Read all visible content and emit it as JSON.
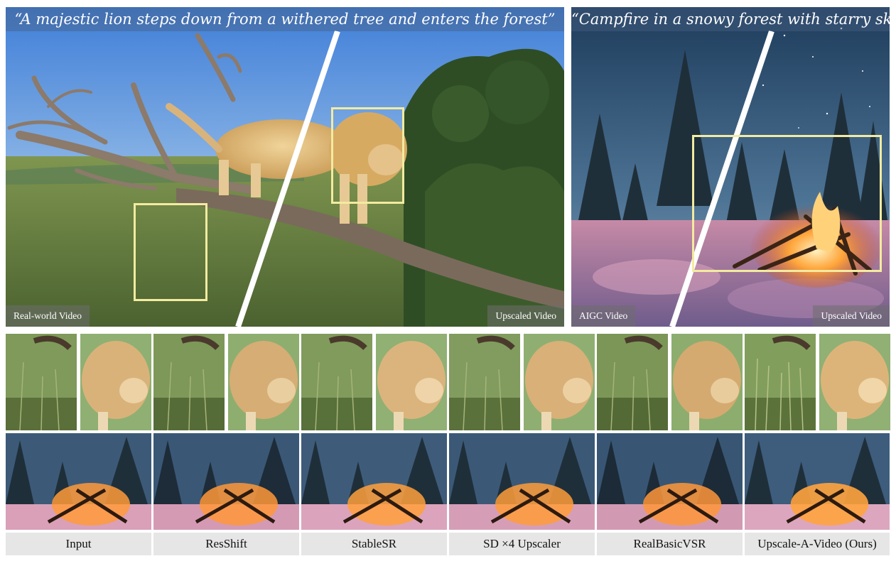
{
  "figure": {
    "left_panel": {
      "caption": "“A majestic lion steps down from a withered tree and enters the forest”",
      "tag_left": "Real-world Video",
      "tag_right": "Upscaled Video"
    },
    "right_panel": {
      "caption": "“Campfire in a snowy forest with starry sky”",
      "tag_left": "AIGC Video",
      "tag_right": "Upscaled Video"
    },
    "methods": [
      {
        "label": "Input"
      },
      {
        "label": "ResShift"
      },
      {
        "label": "StableSR"
      },
      {
        "label": "SD ×4 Upscaler"
      },
      {
        "label": "RealBasicVSR"
      },
      {
        "label": "Upscale-A-Video (Ours)"
      }
    ]
  },
  "colors": {
    "highlight_box": "#f2eba0",
    "label_bg": "#e6e6e6",
    "caption_bar": "#465f82"
  }
}
